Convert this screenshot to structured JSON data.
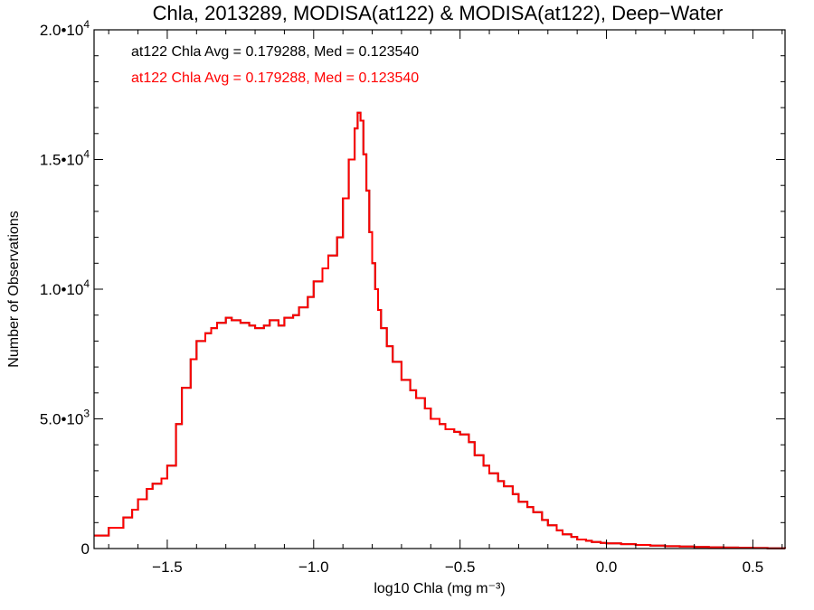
{
  "chart_data": {
    "type": "line",
    "title": "Chla, 2013289, MODISA(at122) & MODISA(at122), Deep−Water",
    "xlabel": "log10 Chla (mg m⁻³)",
    "ylabel": "Number of Observations",
    "xlim": [
      -1.75,
      0.61
    ],
    "ylim": [
      0,
      20000
    ],
    "x_ticks": [
      {
        "value": -1.5,
        "label": "−1.5"
      },
      {
        "value": -1.0,
        "label": "−1.0"
      },
      {
        "value": -0.5,
        "label": "−0.5"
      },
      {
        "value": 0.0,
        "label": "0.0"
      },
      {
        "value": 0.5,
        "label": "0.5"
      }
    ],
    "y_ticks": [
      {
        "value": 0,
        "mantissa": "0",
        "exponent": ""
      },
      {
        "value": 5000,
        "mantissa": "5.0•10",
        "exponent": "3"
      },
      {
        "value": 10000,
        "mantissa": "1.0•10",
        "exponent": "4"
      },
      {
        "value": 15000,
        "mantissa": "1.5•10",
        "exponent": "4"
      },
      {
        "value": 20000,
        "mantissa": "2.0•10",
        "exponent": "4"
      }
    ],
    "annotations": [
      {
        "text": "at122 Chla Avg = 0.179288, Med = 0.123540",
        "color": "#000000"
      },
      {
        "text": "at122 Chla Avg = 0.179288, Med = 0.123540",
        "color": "#ff0000"
      }
    ],
    "series": [
      {
        "color": "#000000",
        "x": [
          -1.75,
          -1.7,
          -1.65,
          -1.62,
          -1.6,
          -1.57,
          -1.55,
          -1.52,
          -1.5,
          -1.47,
          -1.45,
          -1.42,
          -1.4,
          -1.37,
          -1.35,
          -1.33,
          -1.3,
          -1.28,
          -1.25,
          -1.22,
          -1.2,
          -1.17,
          -1.15,
          -1.12,
          -1.1,
          -1.07,
          -1.05,
          -1.02,
          -1.0,
          -0.97,
          -0.95,
          -0.92,
          -0.9,
          -0.88,
          -0.86,
          -0.85,
          -0.84,
          -0.83,
          -0.82,
          -0.81,
          -0.8,
          -0.79,
          -0.78,
          -0.77,
          -0.75,
          -0.73,
          -0.7,
          -0.67,
          -0.65,
          -0.62,
          -0.6,
          -0.57,
          -0.55,
          -0.52,
          -0.5,
          -0.47,
          -0.45,
          -0.42,
          -0.4,
          -0.37,
          -0.35,
          -0.32,
          -0.3,
          -0.27,
          -0.25,
          -0.22,
          -0.2,
          -0.17,
          -0.15,
          -0.12,
          -0.1,
          -0.07,
          -0.05,
          -0.02,
          0.0,
          0.05,
          0.1,
          0.15,
          0.2,
          0.25,
          0.3,
          0.35,
          0.4,
          0.45,
          0.5,
          0.55,
          0.61
        ],
        "y": [
          500,
          800,
          1200,
          1500,
          1900,
          2300,
          2500,
          2700,
          3200,
          4800,
          6200,
          7300,
          8000,
          8300,
          8500,
          8700,
          8900,
          8800,
          8700,
          8600,
          8500,
          8600,
          8800,
          8600,
          8900,
          9000,
          9300,
          9700,
          10300,
          10800,
          11300,
          12000,
          13500,
          15000,
          16200,
          16800,
          16500,
          15200,
          13800,
          12200,
          11000,
          10000,
          9200,
          8500,
          7800,
          7200,
          6500,
          6100,
          5800,
          5400,
          5000,
          4800,
          4600,
          4500,
          4400,
          4100,
          3600,
          3200,
          2900,
          2600,
          2400,
          2100,
          1800,
          1600,
          1400,
          1100,
          900,
          700,
          550,
          450,
          350,
          300,
          250,
          220,
          200,
          170,
          140,
          110,
          90,
          75,
          60,
          50,
          40,
          30,
          20,
          10,
          0
        ]
      },
      {
        "color": "#ff0000",
        "x": [
          -1.75,
          -1.7,
          -1.65,
          -1.62,
          -1.6,
          -1.57,
          -1.55,
          -1.52,
          -1.5,
          -1.47,
          -1.45,
          -1.42,
          -1.4,
          -1.37,
          -1.35,
          -1.33,
          -1.3,
          -1.28,
          -1.25,
          -1.22,
          -1.2,
          -1.17,
          -1.15,
          -1.12,
          -1.1,
          -1.07,
          -1.05,
          -1.02,
          -1.0,
          -0.97,
          -0.95,
          -0.92,
          -0.9,
          -0.88,
          -0.86,
          -0.85,
          -0.84,
          -0.83,
          -0.82,
          -0.81,
          -0.8,
          -0.79,
          -0.78,
          -0.77,
          -0.75,
          -0.73,
          -0.7,
          -0.67,
          -0.65,
          -0.62,
          -0.6,
          -0.57,
          -0.55,
          -0.52,
          -0.5,
          -0.47,
          -0.45,
          -0.42,
          -0.4,
          -0.37,
          -0.35,
          -0.32,
          -0.3,
          -0.27,
          -0.25,
          -0.22,
          -0.2,
          -0.17,
          -0.15,
          -0.12,
          -0.1,
          -0.07,
          -0.05,
          -0.02,
          0.0,
          0.05,
          0.1,
          0.15,
          0.2,
          0.25,
          0.3,
          0.35,
          0.4,
          0.45,
          0.5,
          0.55,
          0.61
        ],
        "y": [
          500,
          800,
          1200,
          1500,
          1900,
          2300,
          2500,
          2700,
          3200,
          4800,
          6200,
          7300,
          8000,
          8300,
          8500,
          8700,
          8900,
          8800,
          8700,
          8600,
          8500,
          8600,
          8800,
          8600,
          8900,
          9000,
          9300,
          9700,
          10300,
          10800,
          11300,
          12000,
          13500,
          15000,
          16200,
          16800,
          16500,
          15200,
          13800,
          12200,
          11000,
          10000,
          9200,
          8500,
          7800,
          7200,
          6500,
          6100,
          5800,
          5400,
          5000,
          4800,
          4600,
          4500,
          4400,
          4100,
          3600,
          3200,
          2900,
          2600,
          2400,
          2100,
          1800,
          1600,
          1400,
          1100,
          900,
          700,
          550,
          450,
          350,
          300,
          250,
          220,
          200,
          170,
          140,
          110,
          90,
          75,
          60,
          50,
          40,
          30,
          20,
          10,
          0
        ]
      }
    ]
  }
}
